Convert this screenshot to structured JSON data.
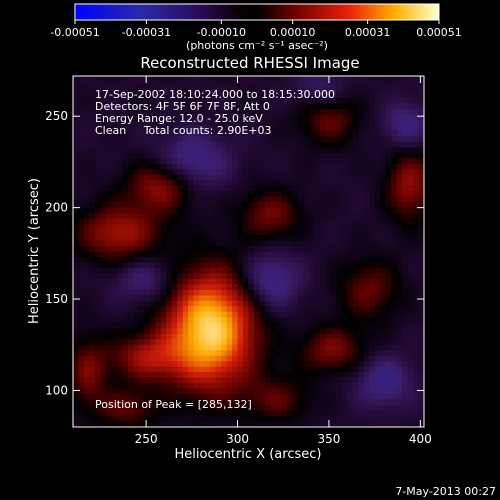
{
  "chart_data": {
    "type": "heatmap",
    "title": "Reconstructed RHESSI Image",
    "xlabel": "Heliocentric X (arcsec)",
    "ylabel": "Heliocentric Y (arcsec)",
    "xlim": [
      210,
      402
    ],
    "ylim": [
      80,
      272
    ],
    "x_ticks": [
      250,
      300,
      350,
      400
    ],
    "y_ticks": [
      100,
      150,
      200,
      250
    ],
    "colorbar": {
      "ticks": [
        "-0.00051",
        "-0.00031",
        "-0.00010",
        "0.00010",
        "0.00031",
        "0.00051"
      ],
      "range": [
        -0.00051,
        0.00051
      ],
      "unit_label": "(photons cm⁻² s⁻¹ asec⁻²)"
    },
    "annotations": [
      "17-Sep-2002 18:10:24.000 to 18:15:30.000",
      "Detectors: 4F 5F 6F 7F 8F, Att 0",
      "Energy Range: 12.0 - 25.0 keV",
      "Clean     Total counts: 2.90E+03"
    ],
    "peak_label": "Position of Peak = [285,132]",
    "peak": {
      "x": 285,
      "y": 132,
      "value": 0.00051
    },
    "sources": [
      {
        "x": 285,
        "y": 133,
        "amp": 1.0,
        "sx": 17,
        "sy": 22
      },
      {
        "x": 258,
        "y": 212,
        "amp": 0.42,
        "sx": 13,
        "sy": 10
      },
      {
        "x": 235,
        "y": 186,
        "amp": 0.45,
        "sx": 16,
        "sy": 11
      },
      {
        "x": 250,
        "y": 118,
        "amp": 0.4,
        "sx": 14,
        "sy": 9
      },
      {
        "x": 352,
        "y": 122,
        "amp": 0.35,
        "sx": 13,
        "sy": 9
      },
      {
        "x": 372,
        "y": 155,
        "amp": 0.3,
        "sx": 12,
        "sy": 12
      },
      {
        "x": 350,
        "y": 248,
        "amp": 0.3,
        "sx": 12,
        "sy": 10
      },
      {
        "x": 394,
        "y": 212,
        "amp": 0.4,
        "sx": 9,
        "sy": 14
      },
      {
        "x": 318,
        "y": 196,
        "amp": 0.33,
        "sx": 12,
        "sy": 10
      },
      {
        "x": 218,
        "y": 110,
        "amp": 0.32,
        "sx": 8,
        "sy": 14
      },
      {
        "x": 240,
        "y": 90,
        "amp": 0.28,
        "sx": 12,
        "sy": 8
      },
      {
        "x": 322,
        "y": 95,
        "amp": 0.26,
        "sx": 13,
        "sy": 9
      },
      {
        "x": 275,
        "y": 225,
        "amp": -0.33,
        "sx": 14,
        "sy": 11
      },
      {
        "x": 318,
        "y": 160,
        "amp": -0.35,
        "sx": 11,
        "sy": 11
      },
      {
        "x": 250,
        "y": 160,
        "amp": -0.25,
        "sx": 12,
        "sy": 9
      },
      {
        "x": 380,
        "y": 105,
        "amp": -0.3,
        "sx": 11,
        "sy": 10
      },
      {
        "x": 345,
        "y": 265,
        "amp": -0.2,
        "sx": 10,
        "sy": 8
      },
      {
        "x": 392,
        "y": 245,
        "amp": -0.28,
        "sx": 9,
        "sy": 9
      }
    ]
  },
  "footer": {
    "date": "7-May-2013 00:27"
  }
}
